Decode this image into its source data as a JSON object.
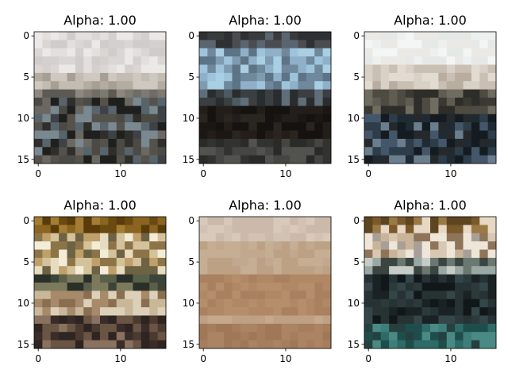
{
  "chart_data": [
    {
      "type": "heatmap",
      "title": "Alpha: 1.00",
      "xticks": [
        0,
        10
      ],
      "yticks": [
        0,
        5,
        10,
        15
      ],
      "xlim": [
        -0.5,
        15.5
      ],
      "ylim": [
        15.5,
        -0.5
      ],
      "grid": false,
      "pixel_rows": [
        {
          "rows": [
            0,
            4
          ],
          "palette": [
            "#d9d6d4",
            "#e2dfdd",
            "#d3d0ce",
            "#ebe9e8",
            "#cfccca"
          ]
        },
        {
          "rows": [
            5,
            6
          ],
          "palette": [
            "#c3bcb3",
            "#b5aca1",
            "#cfc8c0",
            "#a89f94"
          ]
        },
        {
          "rows": [
            7,
            7
          ],
          "palette": [
            "#6f6d67",
            "#8b887f",
            "#5c5a55",
            "#7d7a72"
          ]
        },
        {
          "rows": [
            8,
            15
          ],
          "palette": [
            "#4b4a45",
            "#2f2e2b",
            "#6b6862",
            "#58646c",
            "#3e4247",
            "#1f201e",
            "#7a8890",
            "#55524c"
          ]
        }
      ]
    },
    {
      "type": "heatmap",
      "title": "Alpha: 1.00",
      "xticks": [
        0,
        10
      ],
      "yticks": [
        0,
        5,
        10,
        15
      ],
      "xlim": [
        -0.5,
        15.5
      ],
      "ylim": [
        15.5,
        -0.5
      ],
      "grid": false,
      "pixel_rows": [
        {
          "rows": [
            0,
            1
          ],
          "palette": [
            "#3a3b3d",
            "#4a4c4f",
            "#5a6570",
            "#2f3032"
          ]
        },
        {
          "rows": [
            2,
            6
          ],
          "palette": [
            "#7e9bb2",
            "#8fb0c8",
            "#6f889c",
            "#9ec4dc",
            "#5d7386",
            "#a9cfe3"
          ]
        },
        {
          "rows": [
            7,
            8
          ],
          "palette": [
            "#5f6e78",
            "#2a2d30",
            "#4c5a63",
            "#3b3f42"
          ]
        },
        {
          "rows": [
            9,
            12
          ],
          "palette": [
            "#1b1714",
            "#241e1a",
            "#15120f",
            "#2b2520"
          ]
        },
        {
          "rows": [
            13,
            15
          ],
          "palette": [
            "#323330",
            "#454641",
            "#2a2b28",
            "#52534e"
          ]
        }
      ]
    },
    {
      "type": "heatmap",
      "title": "Alpha: 1.00",
      "xticks": [
        0,
        10
      ],
      "yticks": [
        0,
        5,
        10,
        15
      ],
      "xlim": [
        -0.5,
        15.5
      ],
      "ylim": [
        15.5,
        -0.5
      ],
      "grid": false,
      "pixel_rows": [
        {
          "rows": [
            0,
            3
          ],
          "palette": [
            "#eef0f0",
            "#f4f5f5",
            "#e6e8e8",
            "#ebe9e6"
          ]
        },
        {
          "rows": [
            4,
            6
          ],
          "palette": [
            "#d9d1c6",
            "#c9bfb2",
            "#e1dbd2",
            "#b8ad9f"
          ]
        },
        {
          "rows": [
            7,
            9
          ],
          "palette": [
            "#4d4b42",
            "#3a3a33",
            "#5f5c52",
            "#2d2e29",
            "#6f6c60"
          ]
        },
        {
          "rows": [
            10,
            15
          ],
          "palette": [
            "#1f2a33",
            "#2e3d4a",
            "#141b21",
            "#44576a",
            "#6b7e8e",
            "#26292c"
          ]
        }
      ]
    },
    {
      "type": "heatmap",
      "title": "Alpha: 1.00",
      "xticks": [
        0,
        10
      ],
      "yticks": [
        0,
        5,
        10,
        15
      ],
      "xlim": [
        -0.5,
        15.5
      ],
      "ylim": [
        15.5,
        -0.5
      ],
      "grid": false,
      "pixel_rows": [
        {
          "rows": [
            0,
            1
          ],
          "palette": [
            "#6b4a12",
            "#8a6420",
            "#5a3c0c",
            "#a47d34"
          ]
        },
        {
          "rows": [
            2,
            6
          ],
          "palette": [
            "#bfa06a",
            "#e8dcc0",
            "#8c7448",
            "#f3ecd8",
            "#6e6244",
            "#d4c29a"
          ]
        },
        {
          "rows": [
            7,
            8
          ],
          "palette": [
            "#3c4438",
            "#5a6048",
            "#2a3028",
            "#7c7a5c"
          ]
        },
        {
          "rows": [
            9,
            11
          ],
          "palette": [
            "#a68a6a",
            "#c9b79a",
            "#8a6e50",
            "#dcd0b8"
          ]
        },
        {
          "rows": [
            12,
            15
          ],
          "palette": [
            "#4a3a30",
            "#2e2420",
            "#6a5444",
            "#3a2c28",
            "#8a7260"
          ]
        }
      ]
    },
    {
      "type": "heatmap",
      "title": "Alpha: 1.00",
      "xticks": [
        0,
        10
      ],
      "yticks": [
        0,
        5,
        10,
        15
      ],
      "xlim": [
        -0.5,
        15.5
      ],
      "ylim": [
        15.5,
        -0.5
      ],
      "grid": false,
      "pixel_rows": [
        {
          "rows": [
            0,
            2
          ],
          "palette": [
            "#d2c2b4",
            "#cbbaaa",
            "#d8c9bb"
          ]
        },
        {
          "rows": [
            3,
            6
          ],
          "palette": [
            "#c1a88e",
            "#bca184",
            "#c6ae95"
          ]
        },
        {
          "rows": [
            7,
            11
          ],
          "palette": [
            "#b08866",
            "#aa8160",
            "#b58e6c"
          ]
        },
        {
          "rows": [
            12,
            12
          ],
          "palette": [
            "#c0a084",
            "#c6a88c"
          ]
        },
        {
          "rows": [
            13,
            15
          ],
          "palette": [
            "#a67e5e",
            "#a07858",
            "#ab8464"
          ]
        }
      ]
    },
    {
      "type": "heatmap",
      "title": "Alpha: 1.00",
      "xticks": [
        0,
        10
      ],
      "yticks": [
        0,
        5,
        10,
        15
      ],
      "xlim": [
        -0.5,
        15.5
      ],
      "ylim": [
        15.5,
        -0.5
      ],
      "grid": false,
      "pixel_rows": [
        {
          "rows": [
            0,
            1
          ],
          "palette": [
            "#7a5a2a",
            "#9a7a44",
            "#e6d8c4",
            "#5e4420"
          ]
        },
        {
          "rows": [
            2,
            4
          ],
          "palette": [
            "#c9b49a",
            "#efe6da",
            "#8e7458",
            "#a8a098",
            "#d8c8b2"
          ]
        },
        {
          "rows": [
            5,
            6
          ],
          "palette": [
            "#6a7870",
            "#9aa8a4",
            "#3a4440",
            "#c8ccc6"
          ]
        },
        {
          "rows": [
            7,
            12
          ],
          "palette": [
            "#1a2224",
            "#263234",
            "#121819",
            "#34464a",
            "#2c3a3c"
          ]
        },
        {
          "rows": [
            13,
            15
          ],
          "palette": [
            "#2e6a68",
            "#3e7e7a",
            "#1e4e4c",
            "#4a8a84",
            "#25403f"
          ]
        }
      ]
    }
  ]
}
